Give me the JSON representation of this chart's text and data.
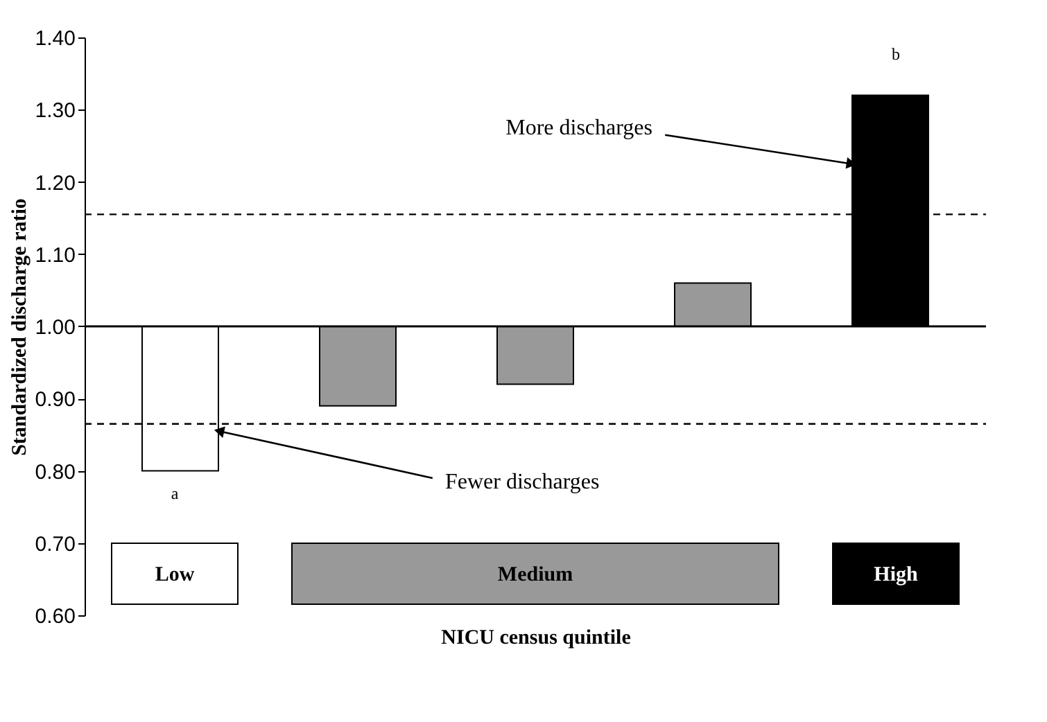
{
  "chart_data": {
    "type": "bar",
    "ylabel": "Standardized discharge ratio",
    "xlabel": "NICU census quintile",
    "categories": [
      null,
      null,
      null,
      null,
      null
    ],
    "base": [
      1.0,
      1.0,
      1.0,
      1.0,
      1.0
    ],
    "values": [
      -0.2,
      -0.11,
      -0.08,
      0.06,
      0.32
    ],
    "colors": [
      "#ffffff",
      "#999999",
      "#999999",
      "#999999",
      "#000000"
    ],
    "ylim": [
      0.6,
      1.4
    ],
    "yticks": [
      {
        "value": 0.6,
        "label": "0.60"
      },
      {
        "value": 0.7,
        "label": "0.70"
      },
      {
        "value": 0.8,
        "label": "0.80"
      },
      {
        "value": 0.9,
        "label": "0.90"
      },
      {
        "value": 1.0,
        "label": "1.00"
      },
      {
        "value": 1.1,
        "label": "1.10"
      },
      {
        "value": 1.2,
        "label": "1.20"
      },
      {
        "value": 1.3,
        "label": "1.30"
      },
      {
        "value": 1.4,
        "label": "1.40"
      }
    ],
    "ref_lines": [
      {
        "axis": "y",
        "value": 1.155,
        "line_style": "dashed",
        "color": "#000000"
      },
      {
        "axis": "y",
        "value": 0.865,
        "line_style": "dashed",
        "color": "#000000"
      }
    ],
    "annotations": [
      "a",
      "b",
      "More discharges",
      "Fewer discharges",
      "Low",
      "Medium",
      "High"
    ]
  }
}
